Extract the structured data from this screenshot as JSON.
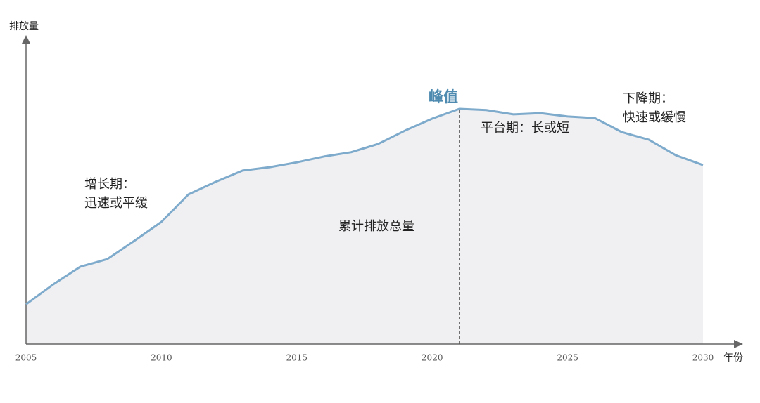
{
  "chart_data": {
    "type": "area",
    "y_label": "排放量",
    "x_label": "年份",
    "x": [
      2005,
      2006,
      2007,
      2008,
      2009,
      2010,
      2011,
      2012,
      2013,
      2014,
      2015,
      2016,
      2017,
      2018,
      2019,
      2020,
      2021,
      2022,
      2023,
      2024,
      2025,
      2026,
      2027,
      2028,
      2029,
      2030
    ],
    "series": [
      {
        "name": "累计排放总量",
        "color": "#7eaacb",
        "fill": "#f0f0f3",
        "values": [
          13,
          19.5,
          25.3,
          27.8,
          33.8,
          40,
          49,
          53.1,
          56.8,
          57.9,
          59.5,
          61.4,
          62.8,
          65.5,
          69.9,
          73.8,
          77,
          76.6,
          75.2,
          75.6,
          74.5,
          74,
          69.4,
          66.9,
          61.8,
          58.6
        ]
      }
    ],
    "xlim": [
      2005,
      2030
    ],
    "xticks": [
      2005,
      2010,
      2015,
      2020,
      2025,
      2030
    ],
    "ylim": [
      0,
      100
    ],
    "peak_year": 2021,
    "annotations": [
      {
        "lines": [
          "增长期：",
          "迅速或平缓"
        ]
      },
      {
        "lines": [
          "峰值"
        ]
      },
      {
        "lines": [
          "平台期：长或短"
        ]
      },
      {
        "lines": [
          "下降期：",
          "快速或缓慢"
        ]
      }
    ]
  }
}
